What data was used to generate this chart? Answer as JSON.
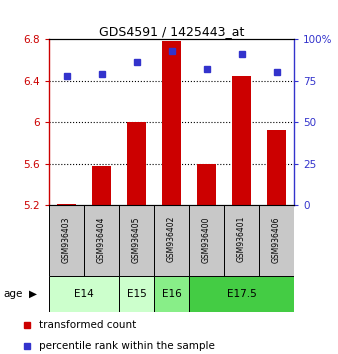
{
  "title": "GDS4591 / 1425443_at",
  "samples": [
    "GSM936403",
    "GSM936404",
    "GSM936405",
    "GSM936402",
    "GSM936400",
    "GSM936401",
    "GSM936406"
  ],
  "transformed_counts": [
    5.21,
    5.58,
    6.0,
    6.78,
    5.6,
    6.44,
    5.92
  ],
  "percentile_ranks": [
    78,
    79,
    86,
    93,
    82,
    91,
    80
  ],
  "ylim_left": [
    5.2,
    6.8
  ],
  "ylim_right": [
    0,
    100
  ],
  "yticks_left": [
    5.2,
    5.6,
    6.0,
    6.4,
    6.8
  ],
  "ytick_labels_left": [
    "5.2",
    "5.6",
    "6",
    "6.4",
    "6.8"
  ],
  "ytick_labels_right": [
    "0",
    "25",
    "50",
    "75",
    "100%"
  ],
  "bar_color": "#cc0000",
  "dot_color": "#3333cc",
  "bar_bottom": 5.2,
  "dotted_lines": [
    5.6,
    6.0,
    6.4
  ],
  "age_groups": [
    {
      "label": "E14",
      "xstart": 0,
      "xend": 2,
      "color": "#ccffcc"
    },
    {
      "label": "E15",
      "xstart": 2,
      "xend": 3,
      "color": "#ccffcc"
    },
    {
      "label": "E16",
      "xstart": 3,
      "xend": 4,
      "color": "#88ee88"
    },
    {
      "label": "E17.5",
      "xstart": 4,
      "xend": 7,
      "color": "#44cc44"
    }
  ],
  "sample_box_color": "#c8c8c8",
  "legend_items": [
    {
      "color": "#cc0000",
      "label": "transformed count"
    },
    {
      "color": "#3333cc",
      "label": "percentile rank within the sample"
    }
  ],
  "bg_color": "#ffffff"
}
